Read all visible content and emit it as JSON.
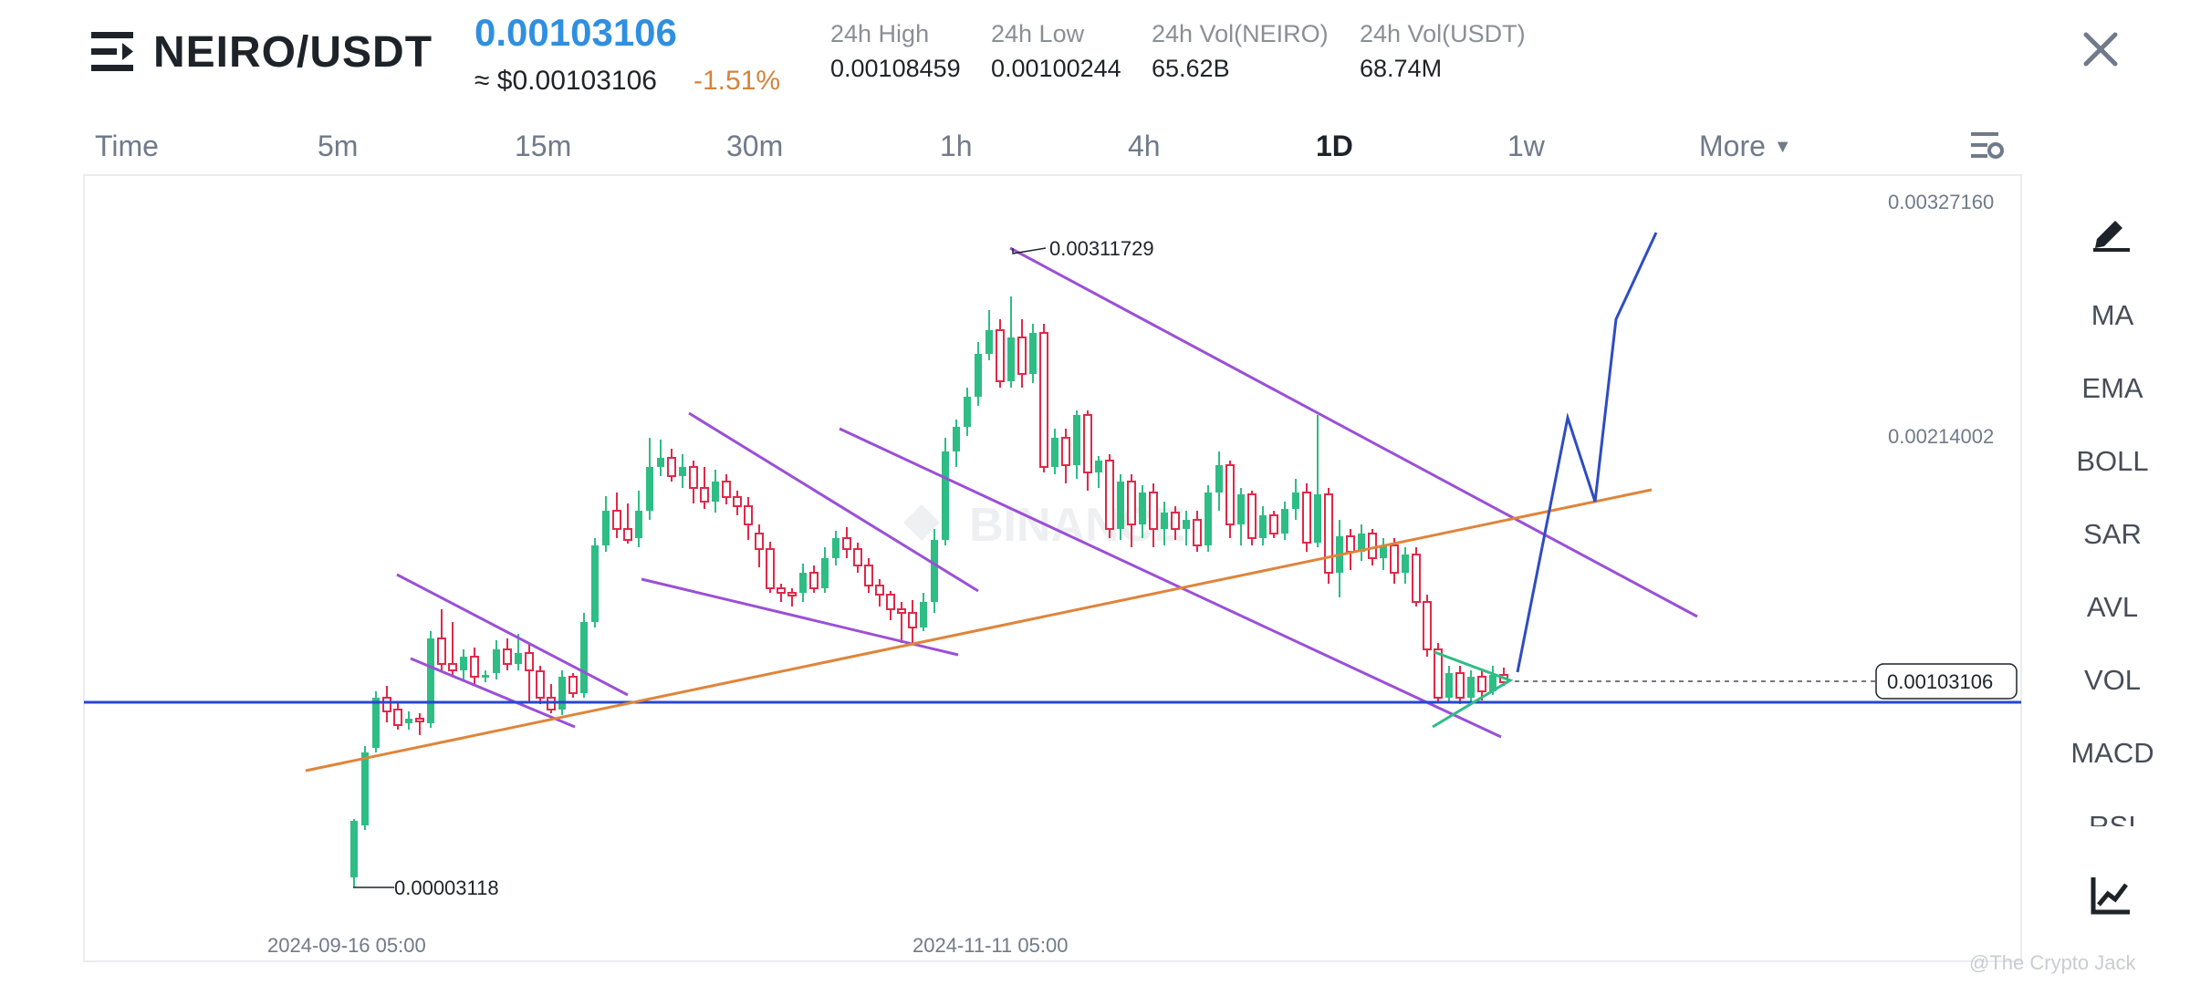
{
  "header": {
    "pair": "NEIRO/USDT",
    "last_price": "0.00103106",
    "usd_price": "≈ $0.00103106",
    "change_pct": "-1.51%",
    "stats": [
      {
        "label": "24h High",
        "value": "0.00108459"
      },
      {
        "label": "24h Low",
        "value": "0.00100244"
      },
      {
        "label": "24h Vol(NEIRO)",
        "value": "65.62B"
      },
      {
        "label": "24h Vol(USDT)",
        "value": "68.74M"
      }
    ]
  },
  "timeframes": [
    "Time",
    "5m",
    "15m",
    "30m",
    "1h",
    "4h",
    "1D",
    "1w",
    "More"
  ],
  "active_timeframe": "1D",
  "chart": {
    "price_labels": {
      "top": "0.00327160",
      "mid": "0.00214002",
      "current": "0.00103106"
    },
    "annotations": {
      "high": "0.00311729",
      "low": "0.00003118"
    },
    "x_labels": [
      "2024-09-16 05:00",
      "2024-11-11 05:00"
    ],
    "watermark": "BINANCE",
    "colors": {
      "up": "#2ebd85",
      "down": "#e0294a",
      "wedge_lines": "#9b4fd6",
      "trendline": "#e0843a",
      "support_line": "#2747d1",
      "projection": "#2e4cc2",
      "triangle": "#2ebd85"
    }
  },
  "chart_data": {
    "type": "candlestick",
    "pair": "NEIRO/USDT",
    "interval": "1D",
    "x_ticks": [
      "2024-09-16 05:00",
      "2024-11-11 05:00"
    ],
    "y_ticks": [
      0.0032716,
      0.00214002
    ],
    "current_price": 0.00103106,
    "period_high": 0.00311729,
    "period_low": 3.118e-05
  },
  "sidebar": {
    "indicators": [
      "MA",
      "EMA",
      "BOLL",
      "SAR",
      "AVL",
      "VOL",
      "MACD",
      "RSI"
    ]
  },
  "credit": "@The Crypto Jack"
}
